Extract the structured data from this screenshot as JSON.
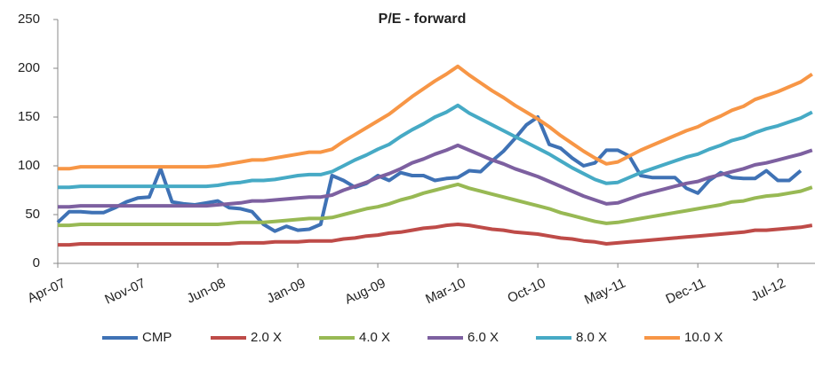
{
  "chart_data": {
    "type": "line",
    "title": "P/E - forward",
    "categories": [
      "Apr-07",
      null,
      null,
      null,
      null,
      null,
      null,
      "Nov-07",
      null,
      null,
      null,
      null,
      null,
      null,
      "Jun-08",
      null,
      null,
      null,
      null,
      null,
      null,
      "Jan-09",
      null,
      null,
      null,
      null,
      null,
      null,
      "Aug-09",
      null,
      null,
      null,
      null,
      null,
      null,
      "Mar-10",
      null,
      null,
      null,
      null,
      null,
      null,
      "Oct-10",
      null,
      null,
      null,
      null,
      null,
      null,
      "May-11",
      null,
      null,
      null,
      null,
      null,
      null,
      "Dec-11",
      null,
      null,
      null,
      null,
      null,
      null,
      "Jul-12",
      null,
      null,
      null
    ],
    "series": [
      {
        "name": "CMP",
        "color": "#3f72b5",
        "values": [
          42,
          53,
          53,
          52,
          52,
          57,
          63,
          67,
          68,
          97,
          63,
          61,
          60,
          62,
          64,
          57,
          56,
          53,
          40,
          33,
          38,
          34,
          35,
          40,
          90,
          85,
          78,
          82,
          90,
          85,
          93,
          90,
          90,
          85,
          87,
          88,
          95,
          94,
          105,
          115,
          128,
          142,
          150,
          122,
          118,
          108,
          100,
          103,
          116,
          116,
          110,
          90,
          88,
          88,
          88,
          77,
          72,
          85,
          93,
          88,
          87,
          87,
          95,
          85,
          85,
          95,
          null
        ]
      },
      {
        "name": "2.0 X",
        "color": "#be4b48",
        "values": [
          19,
          19,
          20,
          20,
          20,
          20,
          20,
          20,
          20,
          20,
          20,
          20,
          20,
          20,
          20,
          20,
          21,
          21,
          21,
          22,
          22,
          22,
          23,
          23,
          23,
          25,
          26,
          28,
          29,
          31,
          32,
          34,
          36,
          37,
          39,
          40,
          39,
          37,
          35,
          34,
          32,
          31,
          30,
          28,
          26,
          25,
          23,
          22,
          20,
          21,
          22,
          23,
          24,
          25,
          26,
          27,
          28,
          29,
          30,
          31,
          32,
          34,
          34,
          35,
          36,
          37,
          39
        ]
      },
      {
        "name": "4.0 X",
        "color": "#98b954",
        "values": [
          39,
          39,
          40,
          40,
          40,
          40,
          40,
          40,
          40,
          40,
          40,
          40,
          40,
          40,
          40,
          41,
          42,
          42,
          42,
          43,
          44,
          45,
          46,
          46,
          47,
          50,
          53,
          56,
          58,
          61,
          65,
          68,
          72,
          75,
          78,
          81,
          77,
          74,
          71,
          68,
          65,
          62,
          59,
          56,
          52,
          49,
          46,
          43,
          41,
          42,
          44,
          46,
          48,
          50,
          52,
          54,
          56,
          58,
          60,
          63,
          64,
          67,
          69,
          70,
          72,
          74,
          78
        ]
      },
      {
        "name": "6.0 X",
        "color": "#7d60a0",
        "values": [
          58,
          58,
          59,
          59,
          59,
          59,
          59,
          59,
          59,
          59,
          59,
          59,
          59,
          59,
          60,
          61,
          62,
          64,
          64,
          65,
          66,
          67,
          68,
          68,
          70,
          75,
          79,
          83,
          88,
          92,
          97,
          103,
          107,
          112,
          116,
          121,
          116,
          111,
          106,
          102,
          97,
          93,
          89,
          84,
          79,
          74,
          69,
          65,
          61,
          62,
          66,
          70,
          73,
          76,
          79,
          82,
          84,
          88,
          91,
          94,
          97,
          101,
          103,
          106,
          109,
          112,
          116
        ]
      },
      {
        "name": "8.0 X",
        "color": "#46aac5",
        "values": [
          78,
          78,
          79,
          79,
          79,
          79,
          79,
          79,
          79,
          79,
          79,
          79,
          79,
          79,
          80,
          82,
          83,
          85,
          85,
          86,
          88,
          90,
          91,
          91,
          94,
          100,
          106,
          111,
          117,
          122,
          130,
          137,
          143,
          150,
          155,
          162,
          154,
          148,
          142,
          136,
          130,
          124,
          118,
          112,
          105,
          98,
          92,
          86,
          82,
          83,
          88,
          93,
          97,
          101,
          105,
          109,
          112,
          117,
          121,
          126,
          129,
          134,
          138,
          141,
          145,
          149,
          155
        ]
      },
      {
        "name": "10.0 X",
        "color": "#f79646",
        "values": [
          97,
          97,
          99,
          99,
          99,
          99,
          99,
          99,
          99,
          99,
          99,
          99,
          99,
          99,
          100,
          102,
          104,
          106,
          106,
          108,
          110,
          112,
          114,
          114,
          117,
          125,
          132,
          139,
          146,
          153,
          162,
          171,
          179,
          187,
          194,
          202,
          193,
          185,
          177,
          170,
          162,
          155,
          148,
          140,
          131,
          123,
          115,
          108,
          102,
          104,
          110,
          116,
          121,
          126,
          131,
          136,
          140,
          146,
          151,
          157,
          161,
          168,
          172,
          176,
          181,
          186,
          194
        ]
      }
    ],
    "ylim": [
      0,
      250
    ],
    "yticks": [
      0,
      50,
      100,
      150,
      200,
      250
    ],
    "legend": "bottom"
  }
}
